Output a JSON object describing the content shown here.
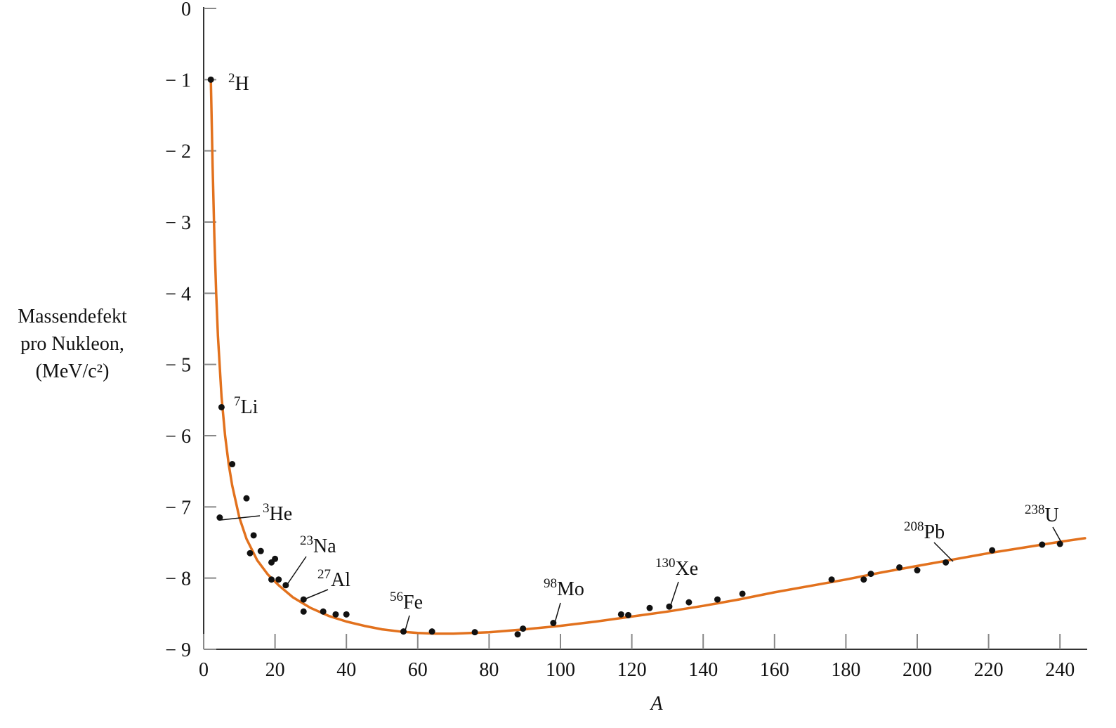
{
  "chart_data": {
    "type": "scatter",
    "title": "",
    "xlabel": "A",
    "ylabel_lines": [
      "Massendefekt",
      "pro Nukleon,",
      "(MeV/c²)"
    ],
    "xlim": [
      0,
      248
    ],
    "ylim": [
      -9,
      0
    ],
    "xticks": [
      "0",
      "20",
      "40",
      "60",
      "80",
      "100",
      "120",
      "140",
      "160",
      "180",
      "200",
      "220",
      "240"
    ],
    "yticks": [
      "0",
      "− 1",
      "− 2",
      "− 3",
      "− 4",
      "− 5",
      "− 6",
      "− 7",
      "− 8",
      "− 9"
    ],
    "grid": false,
    "colors": {
      "curve": "#e2711d",
      "points": "#111111",
      "axes": "#333333"
    },
    "points": [
      {
        "x": 2,
        "y": -1.0
      },
      {
        "x": 5,
        "y": -5.6
      },
      {
        "x": 8,
        "y": -6.4
      },
      {
        "x": 12,
        "y": -6.88
      },
      {
        "x": 14,
        "y": -7.4
      },
      {
        "x": 16,
        "y": -7.62
      },
      {
        "x": 19,
        "y": -7.78
      },
      {
        "x": 20,
        "y": -7.73
      },
      {
        "x": 13,
        "y": -7.65
      },
      {
        "x": 19,
        "y": -8.02
      },
      {
        "x": 21,
        "y": -8.02
      },
      {
        "x": 23,
        "y": -8.1
      },
      {
        "x": 28,
        "y": -8.3
      },
      {
        "x": 28,
        "y": -8.47
      },
      {
        "x": 33.5,
        "y": -8.47
      },
      {
        "x": 37,
        "y": -8.51
      },
      {
        "x": 40,
        "y": -8.51
      },
      {
        "x": 56,
        "y": -8.75
      },
      {
        "x": 64,
        "y": -8.75
      },
      {
        "x": 76,
        "y": -8.76
      },
      {
        "x": 88,
        "y": -8.79
      },
      {
        "x": 89.5,
        "y": -8.71
      },
      {
        "x": 98,
        "y": -8.63
      },
      {
        "x": 117,
        "y": -8.51
      },
      {
        "x": 119,
        "y": -8.52
      },
      {
        "x": 125,
        "y": -8.42
      },
      {
        "x": 130.5,
        "y": -8.4
      },
      {
        "x": 136,
        "y": -8.34
      },
      {
        "x": 144,
        "y": -8.3
      },
      {
        "x": 151,
        "y": -8.22
      },
      {
        "x": 176,
        "y": -8.02
      },
      {
        "x": 185,
        "y": -8.02
      },
      {
        "x": 187,
        "y": -7.94
      },
      {
        "x": 195,
        "y": -7.85
      },
      {
        "x": 200,
        "y": -7.89
      },
      {
        "x": 208,
        "y": -7.78
      },
      {
        "x": 221,
        "y": -7.61
      },
      {
        "x": 235,
        "y": -7.53
      },
      {
        "x": 240,
        "y": -7.52
      },
      {
        "x": 4.5,
        "y": -7.15
      }
    ],
    "curve": [
      [
        2,
        -1.0
      ],
      [
        2.5,
        -2.2
      ],
      [
        3,
        -3.2
      ],
      [
        3.5,
        -4.0
      ],
      [
        4,
        -4.6
      ],
      [
        5,
        -5.45
      ],
      [
        6,
        -6.0
      ],
      [
        7,
        -6.4
      ],
      [
        8,
        -6.7
      ],
      [
        10,
        -7.15
      ],
      [
        12,
        -7.45
      ],
      [
        15,
        -7.75
      ],
      [
        18,
        -7.95
      ],
      [
        21,
        -8.1
      ],
      [
        25,
        -8.27
      ],
      [
        30,
        -8.42
      ],
      [
        35,
        -8.53
      ],
      [
        40,
        -8.61
      ],
      [
        45,
        -8.67
      ],
      [
        50,
        -8.72
      ],
      [
        55,
        -8.75
      ],
      [
        60,
        -8.77
      ],
      [
        65,
        -8.78
      ],
      [
        70,
        -8.78
      ],
      [
        75,
        -8.77
      ],
      [
        80,
        -8.76
      ],
      [
        90,
        -8.72
      ],
      [
        100,
        -8.67
      ],
      [
        110,
        -8.61
      ],
      [
        120,
        -8.54
      ],
      [
        130,
        -8.47
      ],
      [
        140,
        -8.39
      ],
      [
        150,
        -8.3
      ],
      [
        160,
        -8.2
      ],
      [
        170,
        -8.11
      ],
      [
        180,
        -8.02
      ],
      [
        190,
        -7.92
      ],
      [
        200,
        -7.83
      ],
      [
        210,
        -7.74
      ],
      [
        220,
        -7.65
      ],
      [
        230,
        -7.57
      ],
      [
        240,
        -7.49
      ],
      [
        247,
        -7.44
      ]
    ],
    "annotations": [
      {
        "sup": "2",
        "text": "H",
        "x": 2,
        "y": -1.0
      },
      {
        "sup": "7",
        "text": "Li",
        "x": 5,
        "y": -5.6
      },
      {
        "sup": "3",
        "text": "He",
        "x": 4.5,
        "y": -7.15
      },
      {
        "sup": "23",
        "text": "Na",
        "x": 23,
        "y": -8.1
      },
      {
        "sup": "27",
        "text": "Al",
        "x": 28,
        "y": -8.3
      },
      {
        "sup": "56",
        "text": "Fe",
        "x": 56,
        "y": -8.75
      },
      {
        "sup": "98",
        "text": "Mo",
        "x": 98,
        "y": -8.63
      },
      {
        "sup": "130",
        "text": "Xe",
        "x": 130.5,
        "y": -8.4
      },
      {
        "sup": "208",
        "text": "Pb",
        "x": 208,
        "y": -7.78
      },
      {
        "sup": "238",
        "text": "U",
        "x": 240,
        "y": -7.52
      }
    ]
  }
}
